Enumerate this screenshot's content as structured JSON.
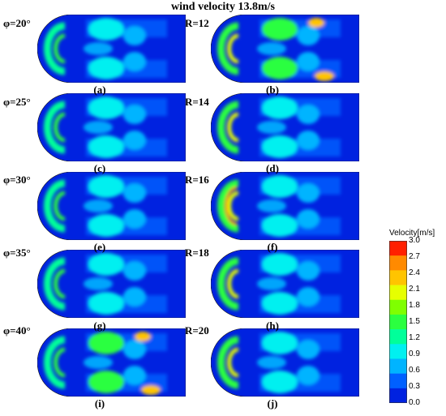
{
  "title": "wind velocity 13.8m/s",
  "left_labels": [
    "φ=20°",
    "φ=25°",
    "φ=30°",
    "φ=35°",
    "φ=40°"
  ],
  "right_labels": [
    "R=12",
    "R=14",
    "R=16",
    "R=18",
    "R=20"
  ],
  "panels": [
    {
      "id": "a",
      "label": "(a)"
    },
    {
      "id": "b",
      "label": "(b)"
    },
    {
      "id": "c",
      "label": "(c)"
    },
    {
      "id": "d",
      "label": "(d)"
    },
    {
      "id": "e",
      "label": "(e)"
    },
    {
      "id": "f",
      "label": "(f)"
    },
    {
      "id": "g",
      "label": "(g)"
    },
    {
      "id": "h",
      "label": "(h)"
    },
    {
      "id": "i",
      "label": "(i)"
    },
    {
      "id": "j",
      "label": "(j)"
    }
  ],
  "colorbar": {
    "title": "Velocity[m/s]",
    "ticks": [
      "3.0",
      "2.7",
      "2.4",
      "2.1",
      "1.8",
      "1.5",
      "1.2",
      "0.9",
      "0.6",
      "0.3",
      "0.0"
    ],
    "colors": [
      "#ff2000",
      "#ff8a00",
      "#ffc400",
      "#e6ff00",
      "#7fff00",
      "#2bff40",
      "#00ff9a",
      "#00f0f0",
      "#00b4ff",
      "#0060ff",
      "#0022e0"
    ]
  }
}
